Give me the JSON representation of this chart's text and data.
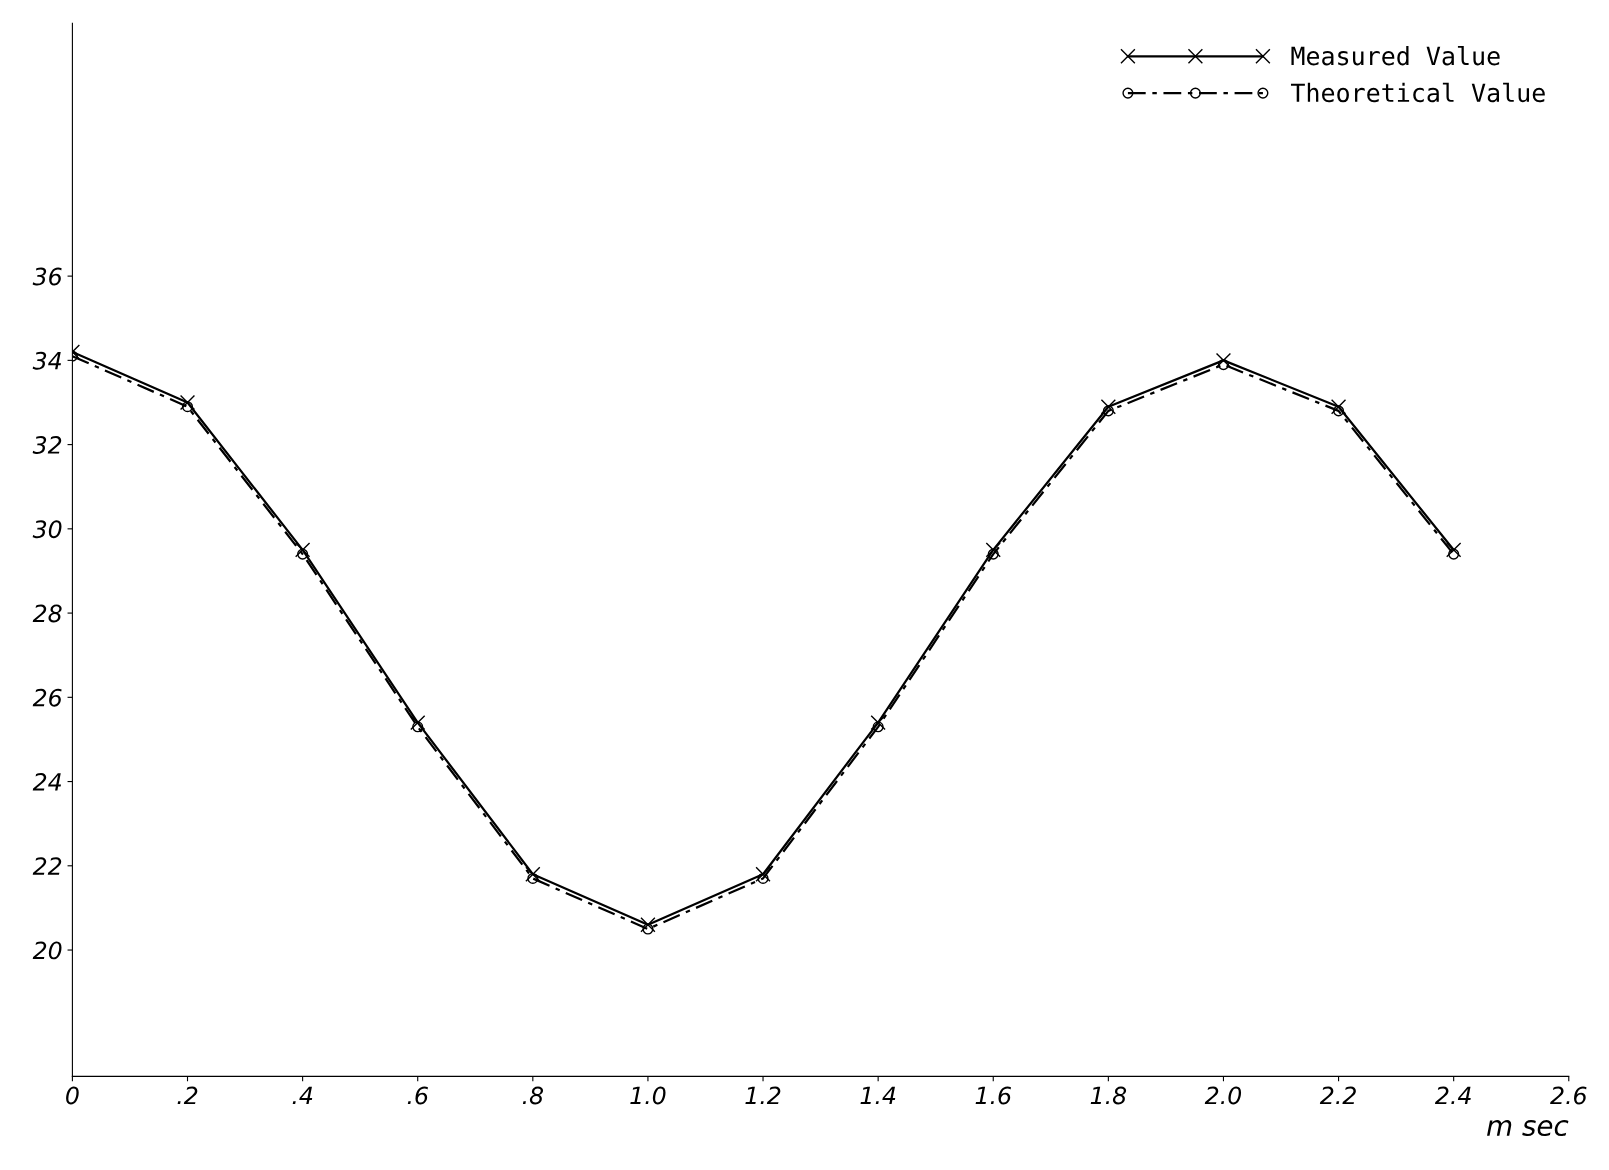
{
  "chart_data": {
    "type": "line",
    "xlabel": "m sec",
    "x": [
      0,
      0.2,
      0.4,
      0.6,
      0.8,
      1.0,
      1.2,
      1.4,
      1.6,
      1.8,
      2.0,
      2.2,
      2.4
    ],
    "series": [
      {
        "name": "Measured Value",
        "color": "#000000",
        "marker": "cross",
        "line_style": "solid",
        "values": [
          34.2,
          33.0,
          29.5,
          25.4,
          21.8,
          20.6,
          21.8,
          25.4,
          29.5,
          32.9,
          34.0,
          32.9,
          29.5
        ]
      },
      {
        "name": "Theoretical Value",
        "color": "#000000",
        "marker": "circle",
        "line_style": "dashed",
        "values": [
          34.1,
          32.9,
          29.4,
          25.3,
          21.7,
          20.5,
          21.7,
          25.3,
          29.4,
          32.8,
          33.9,
          32.8,
          29.4
        ]
      }
    ],
    "xlim": [
      0,
      2.6
    ],
    "ylim": [
      17,
      42
    ],
    "xticks": [
      {
        "value": 0,
        "label": "0"
      },
      {
        "value": 0.2,
        "label": ".2"
      },
      {
        "value": 0.4,
        "label": ".4"
      },
      {
        "value": 0.6,
        "label": ".6"
      },
      {
        "value": 0.8,
        "label": ".8"
      },
      {
        "value": 1.0,
        "label": "1.0"
      },
      {
        "value": 1.2,
        "label": "1.2"
      },
      {
        "value": 1.4,
        "label": "1.4"
      },
      {
        "value": 1.6,
        "label": "1.6"
      },
      {
        "value": 1.8,
        "label": "1.8"
      },
      {
        "value": 2.0,
        "label": "2.0"
      },
      {
        "value": 2.2,
        "label": "2.2"
      },
      {
        "value": 2.4,
        "label": "2.4"
      },
      {
        "value": 2.6,
        "label": "2.6"
      }
    ],
    "yticks": [
      20,
      22,
      24,
      26,
      28,
      30,
      32,
      34,
      36
    ],
    "grid": false,
    "legend": "top right"
  }
}
